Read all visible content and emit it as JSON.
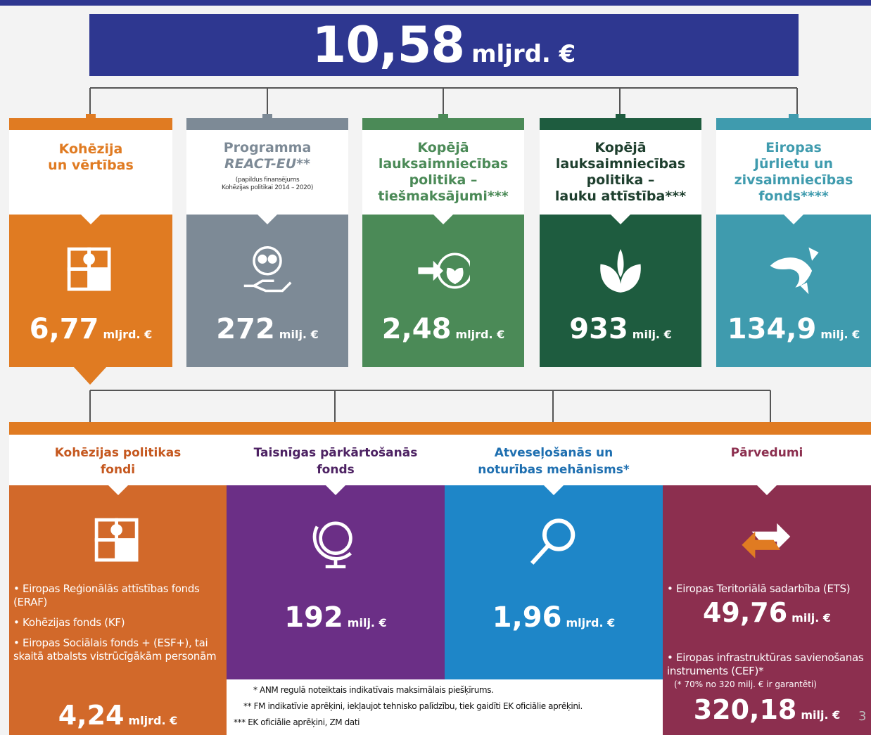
{
  "total": {
    "value": "10,58",
    "unit": "mljrd. €"
  },
  "top_cards": [
    {
      "title": [
        "Kohēzija",
        "un vērtības"
      ],
      "value": "6,77",
      "unit": "mljrd. €"
    },
    {
      "title": [
        "Programma",
        "REACT-EU**"
      ],
      "subtitle": [
        "(papildus finansējums",
        "Kohēzijas politikai 2014 – 2020)"
      ],
      "value": "272",
      "unit": "milj. €"
    },
    {
      "title": [
        "Kopējā",
        "lauksaimniecības",
        "politika –",
        "tiešmaksājumi***"
      ],
      "value": "2,48",
      "unit": "mljrd. €"
    },
    {
      "title": [
        "Kopējā",
        "lauksaimniecības",
        "politika –",
        "lauku attīstība***"
      ],
      "value": "933",
      "unit": "milj. €"
    },
    {
      "title": [
        "Eiropas",
        "Jūrlietu un",
        "zivsaimniecības",
        "fonds****"
      ],
      "value": "134,9",
      "unit": "milj. €"
    }
  ],
  "bottom_cards": [
    {
      "title": [
        "Kohēzijas politikas",
        "fondi"
      ],
      "bullets": [
        "Eiropas Reģionālās attīstības fonds (ERAF)",
        "Kohēzijas fonds (KF)",
        "Eiropas Sociālais fonds + (ESF+), tai skaitā atbalsts vistrūcīgākām personām"
      ],
      "value": "4,24",
      "unit": "mljrd. €"
    },
    {
      "title": [
        "Taisnīgas pārkārtošanās",
        "fonds"
      ],
      "value": "192",
      "unit": "milj. €"
    },
    {
      "title": [
        "Atveseļošanās un",
        "noturības mehānisms*"
      ],
      "value": "1,96",
      "unit": "mljrd. €"
    },
    {
      "title": [
        "Pārvedumi"
      ],
      "items": [
        {
          "text": "Eiropas Teritoriālā sadarbība (ETS)",
          "value": "49,76",
          "unit": "milj. €"
        },
        {
          "text": "Eiropas infrastruktūras savienošanas instruments (CEF)*",
          "note": "(* 70% no 320 milj. € ir garantēti)",
          "value": "320,18",
          "unit": "milj. €"
        }
      ]
    }
  ],
  "footnotes": [
    "* ANM regulā noteiktais indikatīvais maksimālais piešķīrums.",
    "** FM indikatīvie aprēķini, iekļaujot tehnisko palīdzību, tiek gaidīti EK oficiālie aprēķini.",
    "*** EK oficiālie aprēķini, ZM dati"
  ],
  "page_number": "3"
}
